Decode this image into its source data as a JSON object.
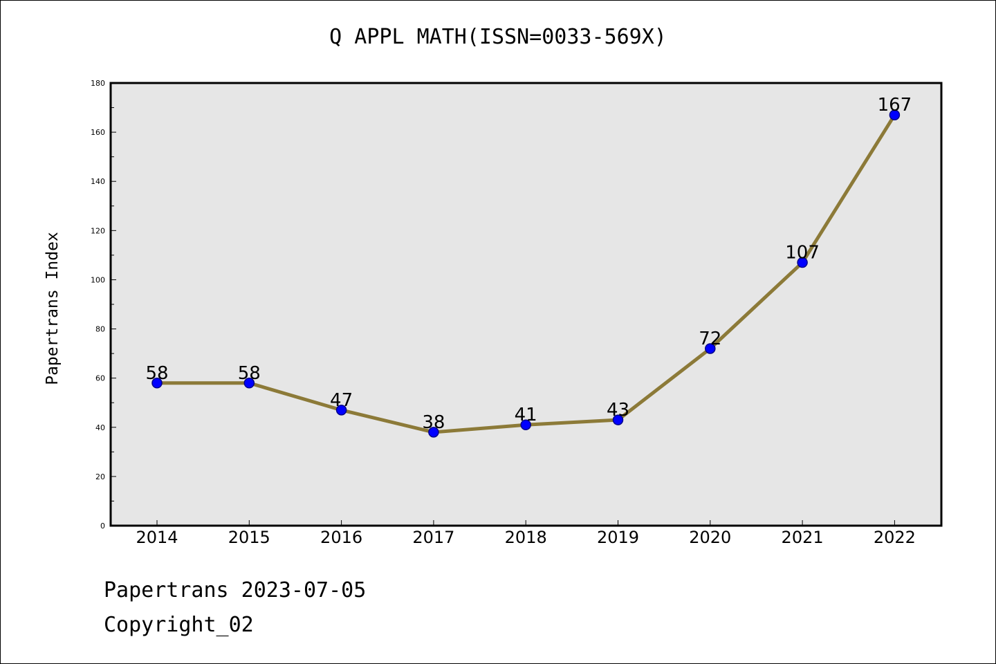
{
  "chart_data": {
    "type": "line",
    "title": "Q APPL MATH(ISSN=0033-569X)",
    "xlabel": "",
    "ylabel": "Papertrans Index",
    "categories": [
      "2014",
      "2015",
      "2016",
      "2017",
      "2018",
      "2019",
      "2020",
      "2021",
      "2022"
    ],
    "series": [
      {
        "values": [
          58,
          58,
          47,
          38,
          41,
          43,
          72,
          107,
          167
        ]
      }
    ],
    "data_labels": [
      "58",
      "58",
      "47",
      "38",
      "41",
      "43",
      "72",
      "107",
      "167"
    ],
    "ylim": [
      0,
      180
    ],
    "yticks": [
      "0",
      "20",
      "40",
      "60",
      "80",
      "100",
      "120",
      "140",
      "160",
      "180"
    ],
    "grid": false,
    "legend": "none",
    "colors": {
      "line": "#8c7a38",
      "marker_fill": "#0000ff",
      "marker_edge": "#00008b",
      "plot_background": "#e6e6e6",
      "axes_border": "#000000"
    }
  },
  "footer": {
    "date_line": "Papertrans 2023-07-05",
    "copyright": "Copyright_02"
  }
}
